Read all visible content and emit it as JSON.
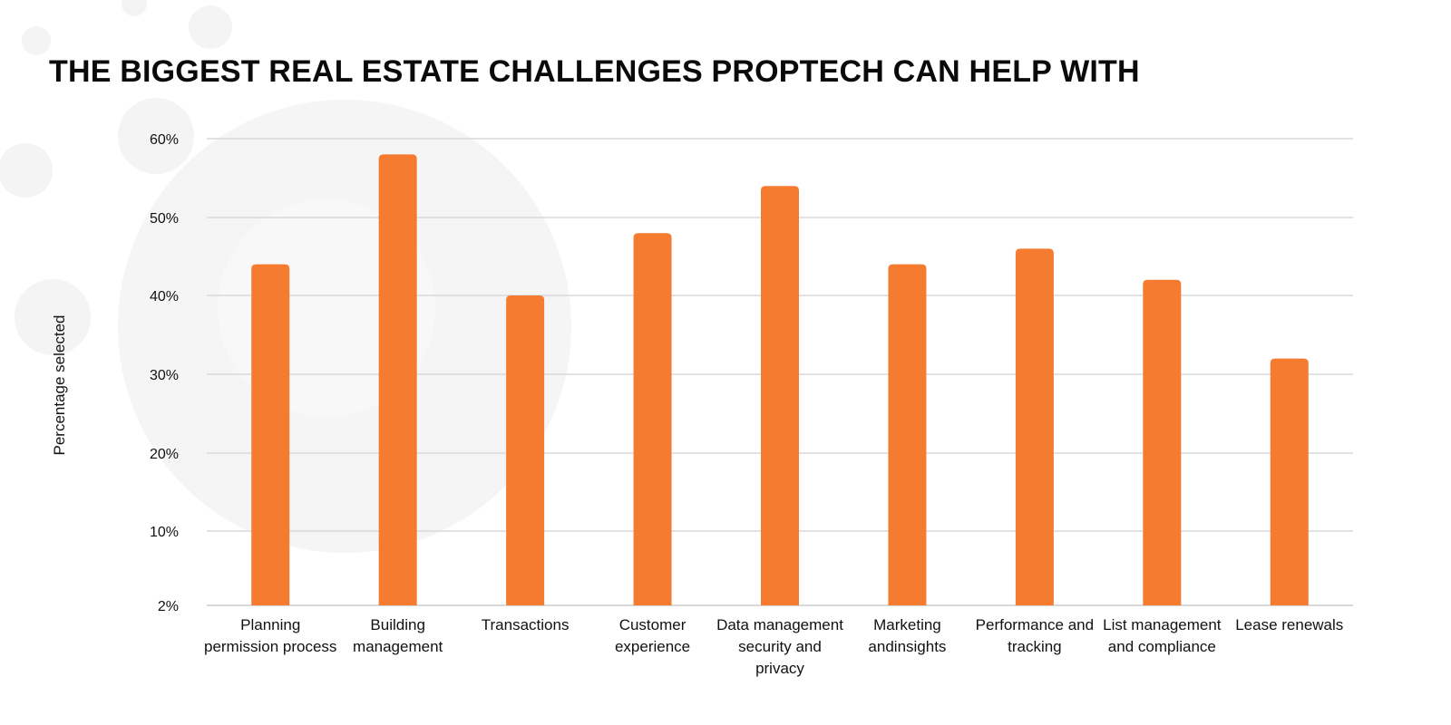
{
  "chart_data": {
    "type": "bar",
    "title": "THE BIGGEST REAL ESTATE CHALLENGES PROPTECH CAN HELP WITH",
    "xlabel": "",
    "ylabel": "Percentage selected",
    "categories": [
      "Planning permission process",
      "Building management",
      "Transactions",
      "Customer experience",
      "Data management security and privacy",
      "Marketing andinsights",
      "Performance and tracking",
      "List management and compliance",
      "Lease renewals"
    ],
    "values": [
      44,
      58,
      40,
      48,
      54,
      44,
      46,
      42,
      32
    ],
    "unit": "%",
    "yticks": [
      {
        "value": 2,
        "label": "2%"
      },
      {
        "value": 10,
        "label": "10%"
      },
      {
        "value": 20,
        "label": "20%"
      },
      {
        "value": 30,
        "label": "30%"
      },
      {
        "value": 40,
        "label": "40%"
      },
      {
        "value": 50,
        "label": "50%"
      },
      {
        "value": 60,
        "label": "60%"
      }
    ],
    "ylim": [
      2,
      60
    ],
    "grid": true,
    "legend": "none",
    "colors": {
      "bar": "#F47B30",
      "grid": "#D9D9D9",
      "decor": "#F4F4F4"
    }
  }
}
